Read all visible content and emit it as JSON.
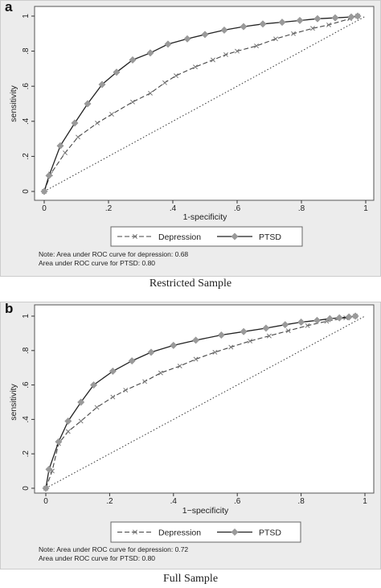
{
  "chart_data": [
    {
      "panel": "a",
      "type": "line",
      "xlabel": "1-specificity",
      "ylabel": "sensitivity",
      "xlim": [
        0,
        1
      ],
      "ylim": [
        0,
        1
      ],
      "xticks": [
        "0",
        ".2",
        ".4",
        ".6",
        ".8",
        "1"
      ],
      "yticks": [
        "0",
        ".2",
        ".4",
        ".6",
        ".8",
        "1"
      ],
      "legend": {
        "position": "bottom"
      },
      "grid": false,
      "series": [
        {
          "name": "Depression",
          "style": "dash",
          "marker": "x",
          "x": [
            0,
            0.02,
            0.065,
            0.105,
            0.165,
            0.21,
            0.275,
            0.33,
            0.375,
            0.41,
            0.47,
            0.525,
            0.565,
            0.6,
            0.66,
            0.72,
            0.775,
            0.835,
            0.885,
            0.95,
            0.975
          ],
          "y": [
            0,
            0.1,
            0.22,
            0.31,
            0.39,
            0.44,
            0.51,
            0.56,
            0.62,
            0.66,
            0.71,
            0.75,
            0.78,
            0.8,
            0.83,
            0.87,
            0.9,
            0.93,
            0.95,
            0.985,
            1
          ]
        },
        {
          "name": "PTSD",
          "style": "solid",
          "marker": "diamond",
          "x": [
            0,
            0.015,
            0.05,
            0.095,
            0.135,
            0.18,
            0.225,
            0.275,
            0.33,
            0.385,
            0.445,
            0.5,
            0.56,
            0.62,
            0.68,
            0.74,
            0.795,
            0.85,
            0.905,
            0.955,
            0.975
          ],
          "y": [
            0,
            0.09,
            0.26,
            0.39,
            0.5,
            0.61,
            0.68,
            0.75,
            0.79,
            0.84,
            0.87,
            0.895,
            0.92,
            0.94,
            0.955,
            0.965,
            0.975,
            0.985,
            0.99,
            0.995,
            1
          ]
        }
      ],
      "note": [
        "Note: Area under ROC curve for depression: 0.68",
        "Area under ROC curve for PTSD: 0.80"
      ],
      "caption": "Restricted Sample"
    },
    {
      "panel": "b",
      "type": "line",
      "xlabel": "1−specificity",
      "ylabel": "sensitivity",
      "xlim": [
        0,
        1
      ],
      "ylim": [
        0,
        1
      ],
      "xticks": [
        "0",
        ".2",
        ".4",
        ".6",
        ".8",
        "1"
      ],
      "yticks": [
        "0",
        ".2",
        ".4",
        ".6",
        ".8",
        "1"
      ],
      "legend": {
        "position": "bottom"
      },
      "grid": false,
      "series": [
        {
          "name": "Depression",
          "style": "dash",
          "marker": "x",
          "x": [
            0,
            0.02,
            0.04,
            0.07,
            0.11,
            0.16,
            0.21,
            0.25,
            0.31,
            0.36,
            0.42,
            0.47,
            0.53,
            0.58,
            0.64,
            0.7,
            0.76,
            0.82,
            0.88,
            0.94,
            0.97
          ],
          "y": [
            0,
            0.1,
            0.26,
            0.33,
            0.39,
            0.47,
            0.53,
            0.57,
            0.62,
            0.67,
            0.71,
            0.75,
            0.79,
            0.82,
            0.855,
            0.885,
            0.915,
            0.945,
            0.97,
            0.99,
            1
          ]
        },
        {
          "name": "PTSD",
          "style": "solid",
          "marker": "diamond",
          "x": [
            0,
            0.01,
            0.04,
            0.07,
            0.11,
            0.15,
            0.21,
            0.27,
            0.33,
            0.4,
            0.47,
            0.55,
            0.62,
            0.69,
            0.75,
            0.8,
            0.85,
            0.89,
            0.92,
            0.95,
            0.97
          ],
          "y": [
            0,
            0.11,
            0.27,
            0.39,
            0.5,
            0.6,
            0.68,
            0.74,
            0.79,
            0.83,
            0.86,
            0.89,
            0.91,
            0.93,
            0.95,
            0.965,
            0.975,
            0.985,
            0.99,
            0.995,
            1
          ]
        }
      ],
      "note": [
        "Note: Area under ROC curve for depression: 0.72",
        "Area under ROC curve for PTSD: 0.80"
      ],
      "caption": "Full Sample"
    }
  ],
  "panels": [
    {
      "letter": "a"
    },
    {
      "letter": "b"
    }
  ]
}
